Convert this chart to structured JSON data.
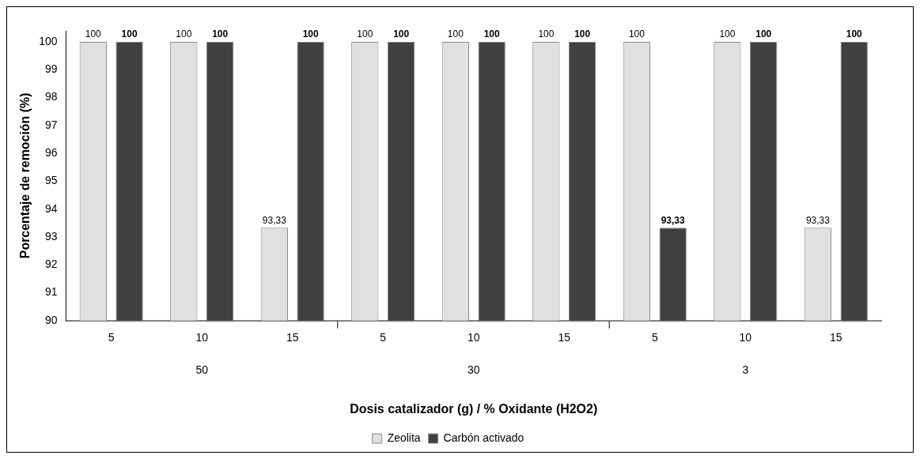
{
  "chart_data": {
    "type": "bar",
    "xlabel": "Dosis catalizador (g) / % Oxidante (H2O2)",
    "ylabel": "Porcentaje de remoción (%)",
    "categories": [
      "5",
      "10",
      "15",
      "5",
      "10",
      "15",
      "5",
      "10",
      "15"
    ],
    "series": [
      {
        "name": "Zeolita",
        "color": "#e0e0e0",
        "values": [
          100,
          100,
          93.33,
          100,
          100,
          100,
          100,
          100,
          93.33
        ],
        "value_labels": [
          "100",
          "100",
          "93,33",
          "100",
          "100",
          "100",
          "100",
          "100",
          "93,33"
        ]
      },
      {
        "name": "Carbón activado",
        "color": "#404040",
        "values": [
          100,
          100,
          100,
          100,
          100,
          100,
          93.33,
          100,
          100
        ],
        "value_labels": [
          "100",
          "100",
          "100",
          "100",
          "100",
          "100",
          "93,33",
          "100",
          "100"
        ]
      }
    ],
    "annotations": [
      "50",
      "30",
      "3"
    ],
    "ylim": [
      90,
      100.4
    ],
    "yticks": [
      90,
      91,
      92,
      93,
      94,
      95,
      96,
      97,
      98,
      99,
      100
    ],
    "grid": false,
    "legend": "bottom"
  }
}
